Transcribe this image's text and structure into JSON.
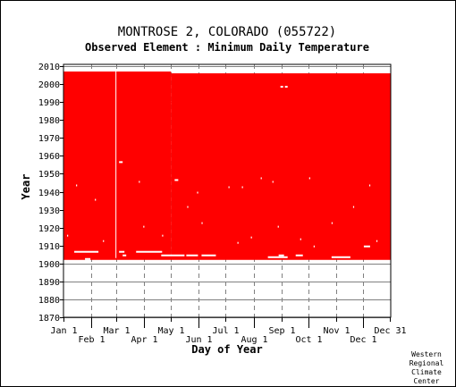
{
  "chart_data": {
    "type": "heatmap",
    "title": "MONTROSE 2, COLORADO   (055722)",
    "subtitle": "Observed Element : Minimum Daily Temperature",
    "xlabel": "Day of Year",
    "ylabel": "Year",
    "credit": [
      "Western",
      "Regional",
      "Climate",
      "Center"
    ],
    "xlim": [
      1,
      365
    ],
    "ylim": [
      1870,
      2011
    ],
    "colors": {
      "observed": "#ff0000",
      "grid": "#808080",
      "axis": "#000000"
    },
    "x_ticks_upper": [
      {
        "label": "Jan 1",
        "day": 1
      },
      {
        "label": "Mar 1",
        "day": 60
      },
      {
        "label": "May 1",
        "day": 121
      },
      {
        "label": "Jul 1",
        "day": 182
      },
      {
        "label": "Sep 1",
        "day": 244
      },
      {
        "label": "Nov 1",
        "day": 305
      },
      {
        "label": "Dec 31",
        "day": 365
      }
    ],
    "x_ticks_lower": [
      {
        "label": "Feb 1",
        "day": 32
      },
      {
        "label": "Apr 1",
        "day": 91
      },
      {
        "label": "Jun 1",
        "day": 152
      },
      {
        "label": "Aug 1",
        "day": 213
      },
      {
        "label": "Oct 1",
        "day": 274
      },
      {
        "label": "Dec 1",
        "day": 335
      }
    ],
    "y_ticks": [
      1870,
      1880,
      1890,
      1900,
      1910,
      1920,
      1930,
      1940,
      1950,
      1960,
      1970,
      1980,
      1990,
      2000,
      2010
    ],
    "observed_blocks": [
      {
        "day_start": 1,
        "day_end": 120,
        "year_start": 1903,
        "year_end": 2006
      },
      {
        "day_start": 121,
        "day_end": 365,
        "year_start": 1903,
        "year_end": 2005
      },
      {
        "day_start": 1,
        "day_end": 365,
        "year_start": 1902,
        "year_end": 1903
      }
    ],
    "missing_segments": [
      {
        "day_start": 13,
        "day_end": 39,
        "year": 1906
      },
      {
        "day_start": 25,
        "day_end": 30,
        "year": 1902
      },
      {
        "day_start": 63,
        "day_end": 66,
        "year": 1956
      },
      {
        "day_start": 63,
        "day_end": 68,
        "year": 1906
      },
      {
        "day_start": 67,
        "day_end": 70,
        "year": 1904
      },
      {
        "day_start": 82,
        "day_end": 110,
        "year": 1906
      },
      {
        "day_start": 110,
        "day_end": 135,
        "year": 1904
      },
      {
        "day_start": 125,
        "day_end": 128,
        "year": 1946
      },
      {
        "day_start": 138,
        "day_end": 150,
        "year": 1904
      },
      {
        "day_start": 155,
        "day_end": 170,
        "year": 1904
      },
      {
        "day_start": 229,
        "day_end": 250,
        "year": 1903
      },
      {
        "day_start": 241,
        "day_end": 246,
        "year": 1904
      },
      {
        "day_start": 260,
        "day_end": 267,
        "year": 1904
      },
      {
        "day_start": 243,
        "day_end": 245,
        "year": 1998
      },
      {
        "day_start": 248,
        "day_end": 250,
        "year": 1998
      },
      {
        "day_start": 336,
        "day_end": 342,
        "year": 1909
      },
      {
        "day_start": 300,
        "day_end": 320,
        "year": 1903
      }
    ],
    "missing_columns": [
      {
        "day": 59,
        "year_start": 1903,
        "year_end": 2006
      }
    ],
    "missing_dots": [
      {
        "day": 15,
        "year": 1943
      },
      {
        "day": 36,
        "year": 1935
      },
      {
        "day": 85,
        "year": 1945
      },
      {
        "day": 150,
        "year": 1939
      },
      {
        "day": 185,
        "year": 1942
      },
      {
        "day": 200,
        "year": 1942
      },
      {
        "day": 221,
        "year": 1947
      },
      {
        "day": 234,
        "year": 1945
      },
      {
        "day": 275,
        "year": 1947
      },
      {
        "day": 324,
        "year": 1931
      },
      {
        "day": 342,
        "year": 1943
      },
      {
        "day": 111,
        "year": 1915
      },
      {
        "day": 139,
        "year": 1931
      },
      {
        "day": 155,
        "year": 1922
      },
      {
        "day": 240,
        "year": 1920
      },
      {
        "day": 265,
        "year": 1913
      },
      {
        "day": 300,
        "year": 1922
      },
      {
        "day": 5,
        "year": 1915
      },
      {
        "day": 45,
        "year": 1912
      },
      {
        "day": 90,
        "year": 1920
      },
      {
        "day": 195,
        "year": 1911
      },
      {
        "day": 210,
        "year": 1914
      },
      {
        "day": 280,
        "year": 1909
      },
      {
        "day": 350,
        "year": 1912
      }
    ]
  }
}
